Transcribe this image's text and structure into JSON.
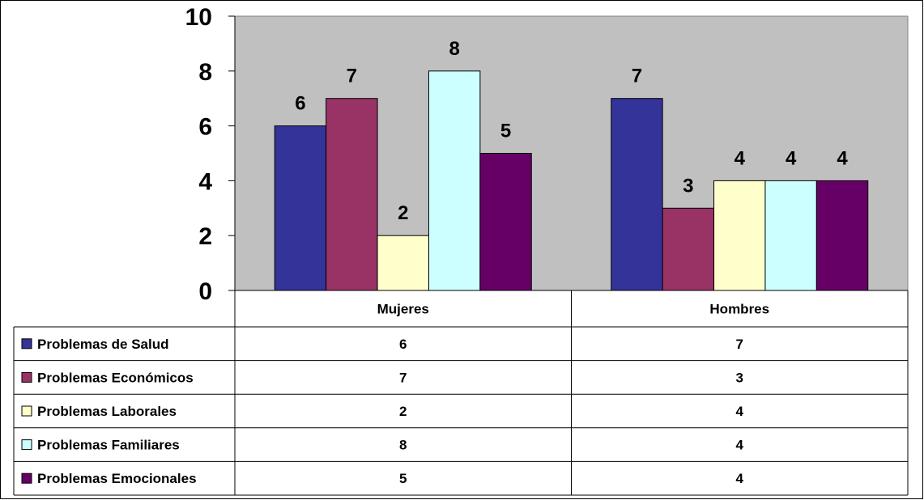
{
  "chart_data": {
    "type": "bar",
    "categories": [
      "Mujeres",
      "Hombres"
    ],
    "series": [
      {
        "name": "Problemas de Salud",
        "color": "#333399",
        "values": [
          6,
          7
        ]
      },
      {
        "name": "Problemas Económicos",
        "color": "#993366",
        "values": [
          7,
          3
        ]
      },
      {
        "name": "Problemas Laborales",
        "color": "#FFFFCC",
        "values": [
          2,
          4
        ]
      },
      {
        "name": "Problemas Familiares",
        "color": "#CCFFFF",
        "values": [
          8,
          4
        ]
      },
      {
        "name": "Problemas Emocionales",
        "color": "#660066",
        "values": [
          5,
          4
        ]
      }
    ],
    "ylim": [
      0,
      10
    ],
    "yticks": [
      0,
      2,
      4,
      6,
      8,
      10
    ],
    "grid": false,
    "plot_background": "#C0C0C0",
    "data_labels": true,
    "legend": "data-table-below"
  }
}
